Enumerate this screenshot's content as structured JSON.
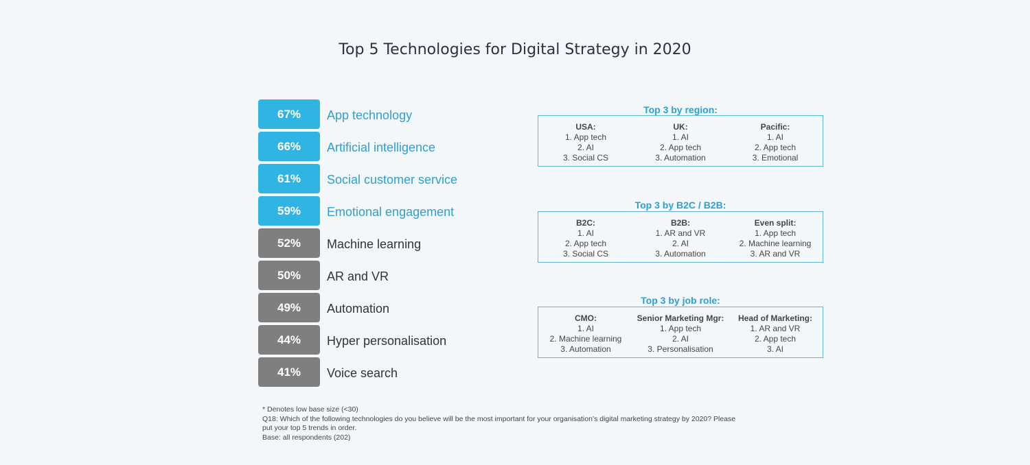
{
  "title": "Top 5 Technologies for Digital Strategy in 2020",
  "colors": {
    "highlight": "#2fb4e4",
    "other": "#7f7f7f",
    "highlight_text": "#2e9fd0",
    "other_text": "#333333",
    "panel_border": "#5eb6d3",
    "panel_title": "#2e9fd0"
  },
  "chart_data": {
    "type": "bar",
    "title": "Top 5 Technologies for Digital Strategy in 2020",
    "unit": "%",
    "categories": [
      "App technology",
      "Artificial intelligence",
      "Social customer service",
      "Emotional engagement",
      "Machine learning",
      "AR and VR",
      "Automation",
      "Hyper personalisation",
      "Voice search"
    ],
    "values": [
      67,
      66,
      61,
      59,
      52,
      50,
      49,
      44,
      41
    ],
    "value_labels": [
      "67%",
      "66%",
      "61%",
      "59%",
      "52%",
      "50%",
      "49%",
      "44%",
      "41%"
    ],
    "highlighted": [
      true,
      true,
      true,
      true,
      false,
      false,
      false,
      false,
      false
    ]
  },
  "panels": [
    {
      "title": "Top 3 by region:",
      "columns": [
        {
          "heading": "USA:",
          "items": [
            "1.   App tech",
            "2.   AI",
            "3.   Social CS"
          ]
        },
        {
          "heading": "UK:",
          "items": [
            "1.   AI",
            "2.   App tech",
            "3.   Automation"
          ]
        },
        {
          "heading": "Pacific:",
          "items": [
            "1.   AI",
            "2.   App tech",
            "3.   Emotional"
          ]
        }
      ]
    },
    {
      "title": "Top 3 by B2C / B2B:",
      "columns": [
        {
          "heading": "B2C:",
          "items": [
            "1.   AI",
            "2.   App tech",
            "3.   Social CS"
          ]
        },
        {
          "heading": "B2B:",
          "items": [
            "1.   AR and VR",
            "2.   AI",
            "3.   Automation"
          ]
        },
        {
          "heading": "Even split:",
          "items": [
            "1.   App tech",
            "2.   Machine learning",
            "3.   AR and VR"
          ]
        }
      ]
    },
    {
      "title": "Top 3 by job role:",
      "columns": [
        {
          "heading": "CMO:",
          "items": [
            "1.   AI",
            "2.   Machine learning",
            "3.   Automation"
          ]
        },
        {
          "heading": "Senior Marketing Mgr:",
          "items": [
            "1.   App tech",
            "2.   AI",
            "3.   Personalisation"
          ]
        },
        {
          "heading": "Head of Marketing:",
          "items": [
            "1.   AR and VR",
            "2.   App tech",
            "3.   AI"
          ]
        }
      ]
    }
  ],
  "footnotes": [
    "* Denotes low base size (<30)",
    "Q18: Which of the following technologies do you believe will be the most important for your organisation’s digital marketing strategy by 2020? Please put your top 5 trends in order.",
    "Base: all respondents (202)"
  ]
}
